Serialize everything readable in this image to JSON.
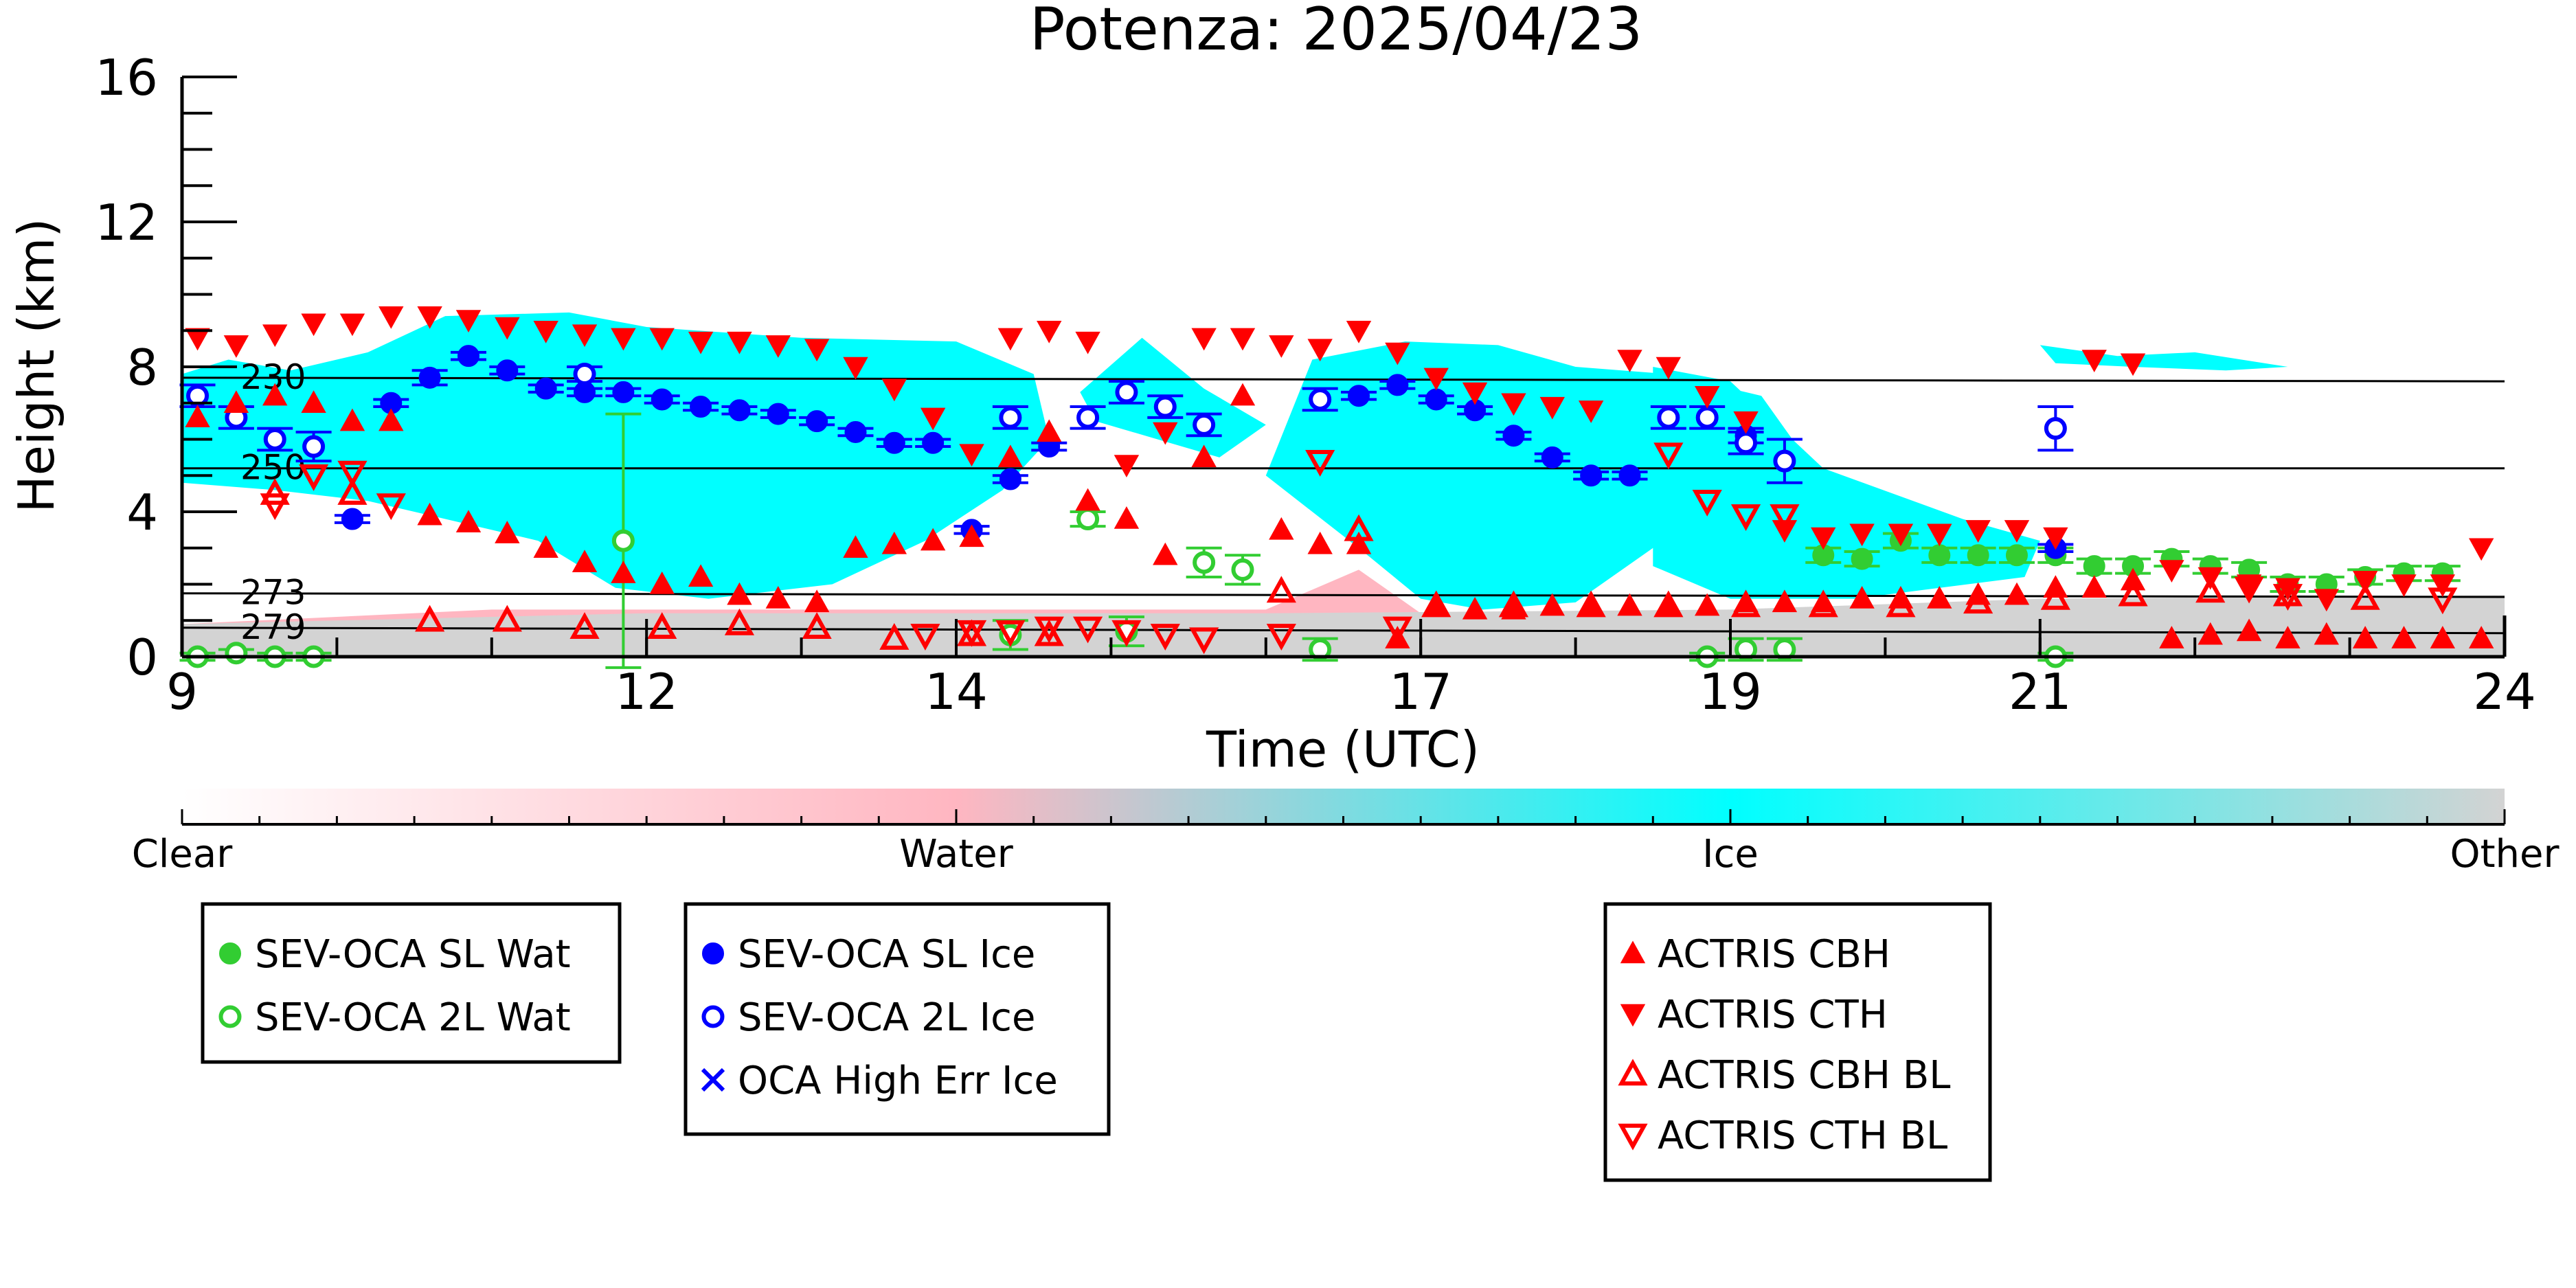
{
  "chart_data": {
    "type": "scatter",
    "title": "Potenza: 2025/04/23",
    "xlabel": "Time (UTC)",
    "ylabel": "Height (km)",
    "xlim": [
      9,
      24
    ],
    "ylim": [
      0,
      16
    ],
    "xticks": [
      9,
      12,
      14,
      17,
      19,
      21,
      24
    ],
    "yticks": [
      0,
      4,
      8,
      12,
      16
    ],
    "grid": false,
    "colorbar": {
      "labels": [
        "Clear",
        "Water",
        "Ice",
        "Other"
      ],
      "colors": [
        "#ffffff",
        "#ffb6c1",
        "#00ffff",
        "#d3d3d3"
      ]
    },
    "isotherms": [
      {
        "label": "230",
        "y": [
          7.7,
          7.6
        ]
      },
      {
        "label": "250",
        "y": [
          5.2,
          5.2
        ]
      },
      {
        "label": "273",
        "y": [
          1.75,
          1.65
        ]
      },
      {
        "label": "279",
        "y": [
          0.8,
          0.65
        ]
      }
    ],
    "background_regions": [
      {
        "category": "Ice",
        "color": "#00ffff",
        "regions": [
          {
            "x": [
              9.0,
              9.3,
              9.7,
              10.2,
              10.7,
              11.5,
              12.0,
              13.0,
              14.0,
              14.5,
              14.6,
              14.3,
              13.8,
              13.2,
              12.4,
              11.8,
              11.3,
              10.7,
              10.2,
              9.6,
              9.0
            ],
            "y": [
              7.8,
              8.2,
              7.9,
              8.4,
              9.4,
              9.5,
              9.1,
              8.8,
              8.7,
              7.8,
              6.0,
              4.6,
              3.2,
              2.0,
              1.6,
              1.9,
              3.2,
              3.8,
              4.3,
              4.6,
              4.8
            ]
          },
          {
            "x": [
              14.8,
              15.2,
              15.6,
              16.0,
              15.7,
              15.3,
              14.9
            ],
            "y": [
              7.3,
              8.8,
              7.4,
              6.4,
              5.5,
              6.0,
              6.5
            ]
          },
          {
            "x": [
              16.0,
              16.3,
              16.9,
              17.5,
              18.0,
              18.6,
              19.2,
              19.4,
              19.1,
              18.5,
              18.0,
              17.4,
              17.0,
              16.6,
              16.3
            ],
            "y": [
              5.0,
              8.2,
              8.7,
              8.6,
              8.0,
              7.8,
              7.2,
              6.0,
              4.0,
              3.0,
              1.5,
              1.3,
              1.6,
              3.0,
              4.0
            ]
          },
          {
            "x": [
              18.5,
              19.0,
              19.6,
              20.5,
              21.0,
              20.9,
              19.8,
              19.0,
              18.5
            ],
            "y": [
              8.0,
              7.6,
              5.2,
              3.8,
              3.2,
              2.2,
              1.6,
              1.6,
              2.5
            ]
          },
          {
            "x": [
              21.0,
              21.5,
              22.0,
              22.6,
              22.2,
              21.6,
              21.1
            ],
            "y": [
              8.6,
              8.3,
              8.4,
              8.0,
              7.9,
              8.0,
              8.1
            ]
          }
        ]
      },
      {
        "category": "Water",
        "color": "#ffb6c1",
        "regions": [
          {
            "x": [
              9.0,
              11.0,
              16.0,
              16.6,
              17.0,
              16.8,
              16.0,
              12.0,
              9.0
            ],
            "y": [
              0.9,
              1.3,
              1.3,
              2.4,
              1.2,
              0.2,
              0.2,
              0.2,
              0.2
            ]
          }
        ]
      },
      {
        "category": "Other",
        "color": "#d3d3d3",
        "regions": [
          {
            "x": [
              9.0,
              12.0,
              16.0,
              19.0,
              21.0,
              24.0,
              24.0,
              21.0,
              19.0,
              16.0,
              12.0,
              9.0
            ],
            "y": [
              0.9,
              1.2,
              1.2,
              1.3,
              1.6,
              1.7,
              0.0,
              0.0,
              0.0,
              0.0,
              0.0,
              0.0
            ]
          }
        ]
      }
    ],
    "series": [
      {
        "name": "SEV-OCA SL Wat",
        "marker": "filled-circle",
        "color": "#32cd32",
        "x": [
          19.6,
          19.85,
          20.1,
          20.35,
          20.6,
          20.85,
          21.1,
          21.35,
          21.6,
          21.85,
          22.1,
          22.35,
          22.6,
          22.85,
          23.1,
          23.35,
          23.6
        ],
        "y": [
          2.8,
          2.7,
          3.2,
          2.8,
          2.8,
          2.8,
          2.8,
          2.5,
          2.5,
          2.7,
          2.5,
          2.4,
          2.0,
          2.0,
          2.2,
          2.3,
          2.3
        ],
        "err": [
          0.2,
          0.2,
          0.2,
          0.2,
          0.2,
          0.2,
          0.2,
          0.2,
          0.2,
          0.2,
          0.2,
          0.2,
          0.2,
          0.2,
          0.2,
          0.2,
          0.2
        ]
      },
      {
        "name": "SEV-OCA 2L Wat",
        "marker": "open-circle",
        "color": "#32cd32",
        "x": [
          9.1,
          9.35,
          9.6,
          9.85,
          11.85,
          14.35,
          14.85,
          15.1,
          15.6,
          15.85,
          16.35,
          18.85,
          19.1,
          19.35,
          21.1
        ],
        "y": [
          0.0,
          0.1,
          0.0,
          0.0,
          3.2,
          0.6,
          3.8,
          0.7,
          2.6,
          2.4,
          0.2,
          0.0,
          0.2,
          0.2,
          0.0
        ],
        "err": [
          0.1,
          0.1,
          0.1,
          0.1,
          3.5,
          0.4,
          0.2,
          0.4,
          0.4,
          0.4,
          0.3,
          0.1,
          0.3,
          0.3,
          0.1
        ]
      },
      {
        "name": "SEV-OCA SL Ice",
        "marker": "filled-circle",
        "color": "#0000ff",
        "x": [
          10.1,
          10.35,
          10.6,
          10.85,
          11.1,
          11.35,
          11.6,
          11.85,
          12.1,
          12.35,
          12.6,
          12.85,
          13.1,
          13.35,
          13.6,
          13.85,
          14.1,
          14.35,
          14.6,
          16.6,
          16.85,
          17.1,
          17.35,
          17.6,
          17.85,
          18.1,
          18.35,
          19.1,
          21.1
        ],
        "y": [
          3.8,
          7.0,
          7.7,
          8.3,
          7.9,
          7.4,
          7.3,
          7.3,
          7.1,
          6.9,
          6.8,
          6.7,
          6.5,
          6.2,
          5.9,
          5.9,
          3.5,
          4.9,
          5.8,
          7.2,
          7.5,
          7.1,
          6.8,
          6.1,
          5.5,
          5.0,
          5.0,
          6.1,
          3.0
        ],
        "err": [
          0.1,
          0.1,
          0.2,
          0.1,
          0.1,
          0.1,
          0.1,
          0.1,
          0.1,
          0.1,
          0.1,
          0.1,
          0.1,
          0.1,
          0.1,
          0.1,
          0.1,
          0.1,
          0.1,
          0.1,
          0.1,
          0.1,
          0.1,
          0.1,
          0.1,
          0.1,
          0.1,
          0.2,
          0.1
        ]
      },
      {
        "name": "SEV-OCA 2L Ice",
        "marker": "open-circle",
        "color": "#0000ff",
        "x": [
          9.1,
          9.35,
          9.6,
          9.85,
          11.6,
          14.35,
          14.85,
          15.1,
          15.35,
          15.6,
          16.35,
          18.6,
          18.85,
          19.1,
          19.35,
          21.1
        ],
        "y": [
          7.2,
          6.6,
          6.0,
          5.8,
          7.8,
          6.6,
          6.6,
          7.3,
          6.9,
          6.4,
          7.1,
          6.6,
          6.6,
          5.9,
          5.4,
          6.3
        ],
        "err": [
          0.3,
          0.3,
          0.3,
          0.4,
          0.2,
          0.3,
          0.3,
          0.3,
          0.3,
          0.3,
          0.3,
          0.3,
          0.3,
          0.3,
          0.6,
          0.6
        ]
      },
      {
        "name": "OCA High Err Ice",
        "marker": "x",
        "color": "#0000ff",
        "x": [],
        "y": []
      },
      {
        "name": "ACTRIS CBH",
        "marker": "filled-triangle-up",
        "color": "#ff0000",
        "x": [
          9.1,
          9.35,
          9.6,
          9.85,
          10.1,
          10.35,
          10.6,
          10.85,
          11.1,
          11.35,
          11.6,
          11.85,
          12.1,
          12.35,
          12.6,
          12.85,
          13.1,
          13.35,
          13.6,
          13.85,
          14.1,
          14.35,
          14.6,
          14.85,
          15.1,
          15.35,
          15.6,
          15.85,
          16.1,
          16.35,
          16.6,
          16.85,
          17.1,
          17.35,
          17.6,
          17.85,
          18.1,
          18.35,
          18.6,
          18.85,
          19.1,
          19.35,
          19.6,
          19.85,
          20.1,
          20.35,
          20.6,
          20.85,
          21.1,
          21.35,
          21.6,
          21.85,
          22.1,
          22.35,
          22.6,
          22.85,
          23.1,
          23.35,
          23.6,
          23.85
        ],
        "y": [
          6.6,
          7.0,
          7.2,
          7.0,
          6.5,
          6.5,
          3.9,
          3.7,
          3.4,
          3.0,
          2.6,
          2.3,
          2.0,
          2.2,
          1.7,
          1.6,
          1.5,
          3.0,
          3.1,
          3.2,
          3.3,
          5.5,
          6.2,
          4.3,
          3.8,
          2.8,
          5.5,
          7.2,
          3.5,
          3.1,
          3.1,
          0.5,
          1.4,
          1.3,
          1.3,
          1.4,
          1.4,
          1.4,
          1.4,
          1.4,
          1.5,
          1.5,
          1.5,
          1.6,
          1.6,
          1.6,
          1.7,
          1.7,
          1.9,
          1.9,
          2.1,
          0.5,
          0.6,
          0.7,
          0.5,
          0.6,
          0.5,
          0.5,
          0.5,
          0.5
        ]
      },
      {
        "name": "ACTRIS CTH",
        "marker": "filled-triangle-down",
        "color": "#ff0000",
        "x": [
          9.1,
          9.35,
          9.6,
          9.85,
          10.1,
          10.35,
          10.6,
          10.85,
          11.1,
          11.35,
          11.6,
          11.85,
          12.1,
          12.35,
          12.6,
          12.85,
          13.1,
          13.35,
          13.6,
          13.85,
          14.1,
          14.35,
          14.6,
          14.85,
          15.1,
          15.35,
          15.6,
          15.85,
          16.1,
          16.35,
          16.6,
          16.85,
          17.1,
          17.35,
          17.6,
          17.85,
          18.1,
          18.35,
          18.6,
          18.85,
          19.1,
          19.35,
          19.6,
          19.85,
          20.1,
          20.35,
          20.6,
          20.85,
          21.1,
          21.35,
          21.6,
          21.85,
          22.1,
          22.35,
          22.6,
          22.85,
          23.1,
          23.35,
          23.6,
          23.85
        ],
        "y": [
          8.8,
          8.6,
          8.9,
          9.2,
          9.2,
          9.4,
          9.4,
          9.3,
          9.1,
          9.0,
          8.9,
          8.8,
          8.8,
          8.7,
          8.7,
          8.6,
          8.5,
          8.0,
          7.4,
          6.6,
          5.6,
          8.8,
          9.0,
          8.7,
          5.3,
          6.2,
          8.8,
          8.8,
          8.6,
          8.5,
          9.0,
          8.4,
          7.7,
          7.3,
          7.0,
          6.9,
          6.8,
          8.2,
          8.0,
          7.2,
          6.5,
          3.5,
          3.3,
          3.4,
          3.4,
          3.4,
          3.5,
          3.5,
          3.3,
          8.2,
          8.1,
          2.4,
          2.2,
          2.0,
          1.9,
          1.6,
          2.1,
          2.0,
          2.0,
          3.0
        ]
      },
      {
        "name": "ACTRIS CBH BL",
        "marker": "open-triangle-up",
        "color": "#ff0000",
        "x": [
          9.6,
          10.1,
          10.6,
          11.1,
          11.6,
          12.1,
          12.6,
          13.1,
          13.6,
          14.1,
          14.6,
          16.1,
          16.6,
          17.1,
          17.6,
          18.1,
          18.6,
          19.1,
          19.6,
          20.1,
          20.6,
          21.1,
          21.6,
          22.1,
          22.6,
          23.1
        ],
        "y": [
          4.5,
          4.5,
          1.0,
          1.0,
          0.8,
          0.8,
          0.9,
          0.8,
          0.5,
          0.6,
          0.6,
          1.8,
          3.5,
          1.4,
          1.4,
          1.4,
          1.4,
          1.4,
          1.4,
          1.4,
          1.5,
          1.6,
          1.7,
          1.8,
          1.7,
          1.6
        ]
      },
      {
        "name": "ACTRIS CTH BL",
        "marker": "open-triangle-down",
        "color": "#ff0000",
        "x": [
          9.6,
          9.85,
          10.1,
          10.35,
          13.8,
          14.1,
          14.35,
          14.6,
          14.85,
          15.1,
          15.35,
          15.6,
          16.1,
          16.35,
          16.85,
          18.6,
          18.85,
          19.1,
          19.35,
          22.35,
          22.6,
          23.6
        ],
        "y": [
          4.2,
          5.0,
          5.1,
          4.2,
          0.6,
          0.7,
          0.7,
          0.8,
          0.8,
          0.7,
          0.6,
          0.5,
          0.6,
          5.4,
          0.8,
          5.6,
          4.3,
          3.9,
          3.9,
          1.9,
          1.7,
          1.6
        ]
      }
    ]
  }
}
